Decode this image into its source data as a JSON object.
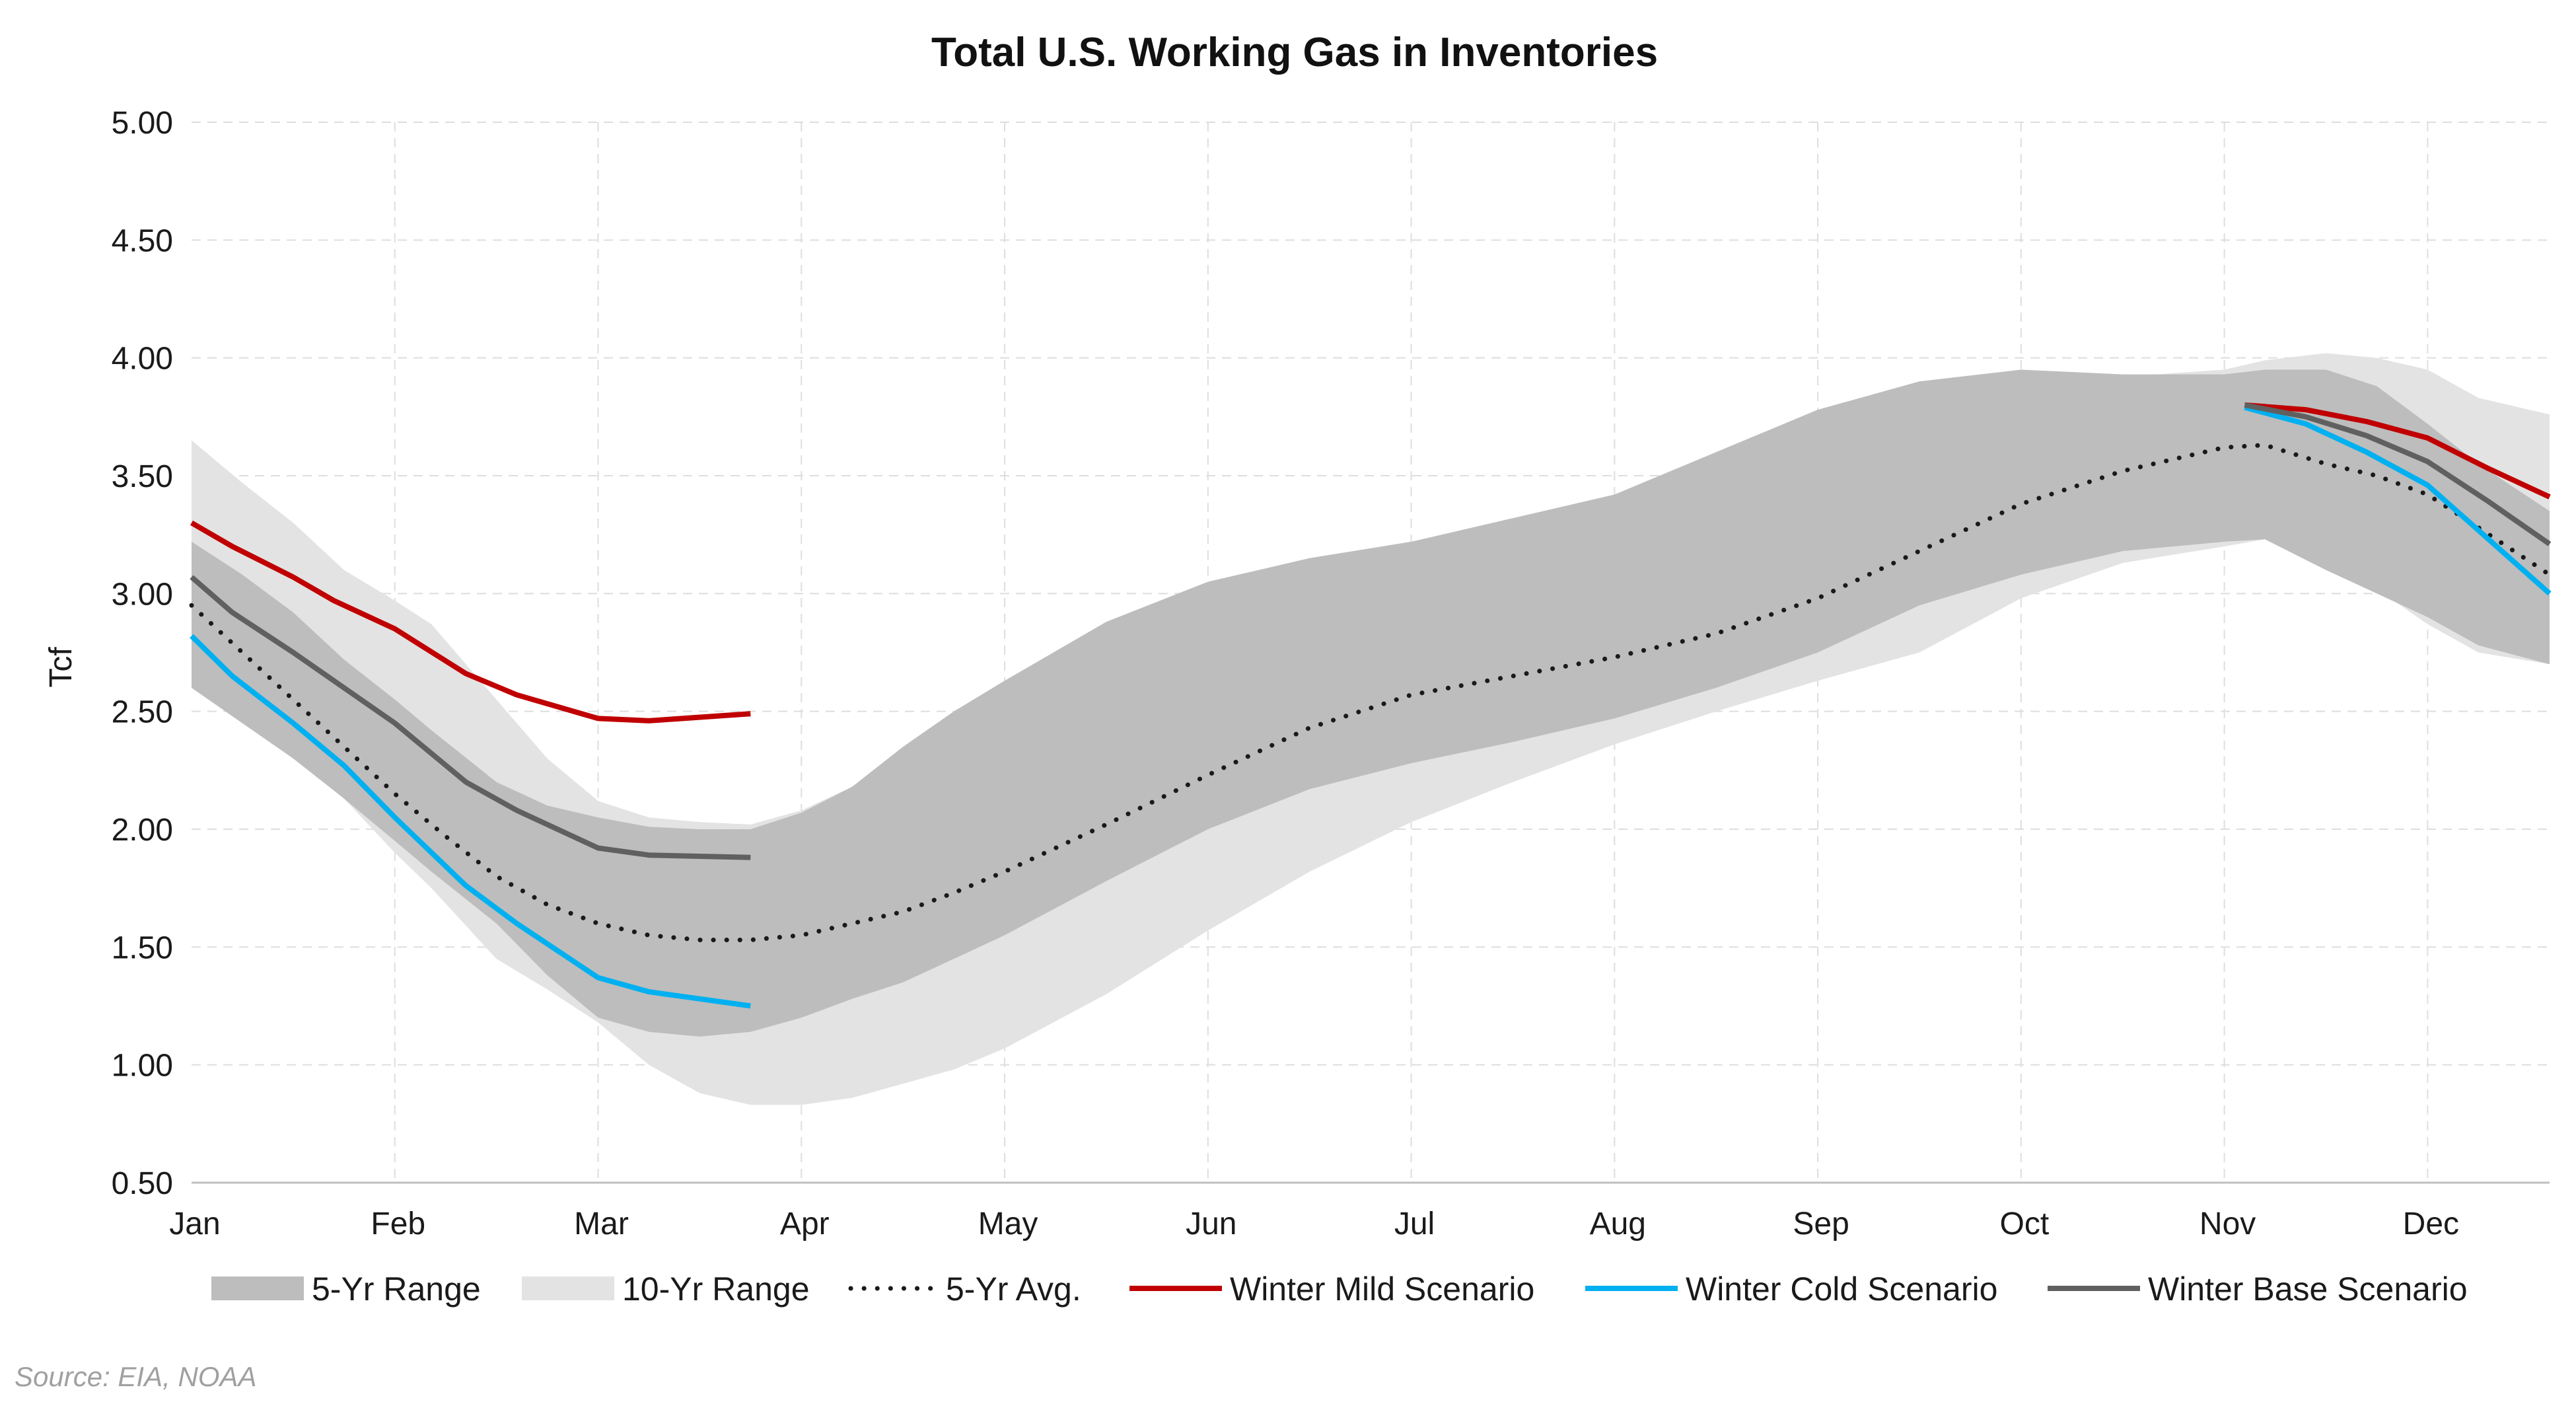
{
  "chart_data": {
    "type": "line",
    "title": "Total U.S. Working Gas in Inventories",
    "ylabel": "Tcf",
    "xlabel": "",
    "ylim": [
      0.5,
      5.0
    ],
    "yticks": [
      "5.00",
      "4.50",
      "4.00",
      "3.50",
      "3.00",
      "2.50",
      "2.00",
      "1.50",
      "1.00",
      "0.50"
    ],
    "xlim": [
      0,
      11.6
    ],
    "xticks": [
      "Jan",
      "Feb",
      "Mar",
      "Apr",
      "May",
      "Jun",
      "Jul",
      "Aug",
      "Sep",
      "Oct",
      "Nov",
      "Dec"
    ],
    "grid": true,
    "legend_position": "bottom",
    "source": "Source: EIA, NOAA",
    "colors": {
      "range5": "#bdbdbd",
      "range10": "#e3e3e3",
      "avg": "#1a1a1a",
      "mild": "#c00000",
      "cold": "#00b0f0",
      "base": "#606060",
      "grid": "#dedede"
    },
    "legend": [
      {
        "label": "5-Yr Range",
        "kind": "area",
        "key": "range5"
      },
      {
        "label": "10-Yr Range",
        "kind": "area",
        "key": "range10"
      },
      {
        "label": "5-Yr Avg.",
        "kind": "dotted",
        "key": "avg"
      },
      {
        "label": "Winter Mild Scenario",
        "kind": "line",
        "key": "mild"
      },
      {
        "label": "Winter Cold Scenario",
        "kind": "line",
        "key": "cold"
      },
      {
        "label": "Winter Base Scenario",
        "kind": "line",
        "key": "base"
      }
    ],
    "band_x": [
      0,
      0.25,
      0.5,
      0.75,
      1.0,
      1.18,
      1.5,
      1.75,
      2.0,
      2.25,
      2.5,
      2.75,
      3.0,
      3.25,
      3.5,
      3.75,
      4.0,
      4.5,
      5.0,
      5.5,
      6.0,
      6.5,
      7.0,
      7.5,
      8.0,
      8.5,
      9.0,
      9.5,
      10.0,
      10.2,
      10.5,
      10.75,
      11.0,
      11.25,
      11.6
    ],
    "range10_high": [
      3.65,
      3.47,
      3.3,
      3.1,
      2.97,
      2.87,
      2.55,
      2.3,
      2.12,
      2.05,
      2.03,
      2.02,
      2.08,
      2.18,
      2.32,
      2.47,
      2.62,
      2.83,
      3.03,
      3.15,
      3.22,
      3.27,
      3.32,
      3.45,
      3.58,
      3.73,
      3.85,
      3.92,
      3.95,
      3.99,
      4.02,
      4.0,
      3.95,
      3.83,
      3.76
    ],
    "range10_low": [
      2.6,
      2.45,
      2.3,
      2.13,
      1.9,
      1.75,
      1.45,
      1.32,
      1.18,
      1.0,
      0.88,
      0.83,
      0.83,
      0.86,
      0.92,
      0.98,
      1.07,
      1.3,
      1.57,
      1.82,
      2.03,
      2.2,
      2.36,
      2.5,
      2.63,
      2.75,
      2.98,
      3.13,
      3.2,
      3.23,
      3.1,
      3.02,
      2.87,
      2.75,
      2.7
    ],
    "range5_high": [
      3.22,
      3.08,
      2.92,
      2.72,
      2.55,
      2.42,
      2.2,
      2.1,
      2.05,
      2.01,
      2.0,
      2.0,
      2.07,
      2.18,
      2.35,
      2.5,
      2.63,
      2.88,
      3.05,
      3.15,
      3.22,
      3.32,
      3.42,
      3.6,
      3.78,
      3.9,
      3.95,
      3.93,
      3.93,
      3.95,
      3.95,
      3.88,
      3.72,
      3.55,
      3.35
    ],
    "range5_low": [
      2.6,
      2.45,
      2.3,
      2.13,
      1.95,
      1.82,
      1.6,
      1.38,
      1.2,
      1.14,
      1.12,
      1.14,
      1.2,
      1.28,
      1.35,
      1.45,
      1.55,
      1.78,
      2.0,
      2.17,
      2.28,
      2.37,
      2.47,
      2.6,
      2.75,
      2.95,
      3.08,
      3.18,
      3.22,
      3.23,
      3.1,
      3.0,
      2.9,
      2.78,
      2.7
    ],
    "avg_x": [
      0,
      0.25,
      0.5,
      0.75,
      1.0,
      1.25,
      1.5,
      1.75,
      2.0,
      2.25,
      2.5,
      2.75,
      3.0,
      3.25,
      3.5,
      3.75,
      4.0,
      4.5,
      5.0,
      5.5,
      6.0,
      6.5,
      7.0,
      7.5,
      8.0,
      8.5,
      9.0,
      9.5,
      10.0,
      10.2,
      10.5,
      10.75,
      11.0,
      11.25,
      11.6
    ],
    "avg_y": [
      2.95,
      2.75,
      2.55,
      2.35,
      2.15,
      1.97,
      1.8,
      1.68,
      1.6,
      1.55,
      1.53,
      1.53,
      1.55,
      1.6,
      1.65,
      1.73,
      1.82,
      2.02,
      2.23,
      2.43,
      2.57,
      2.65,
      2.73,
      2.83,
      2.98,
      3.18,
      3.38,
      3.52,
      3.62,
      3.63,
      3.55,
      3.5,
      3.42,
      3.28,
      3.08
    ],
    "series": [
      {
        "name": "Winter Mild Scenario",
        "key": "mild",
        "x": [
          0,
          0.2,
          0.5,
          0.7,
          1.0,
          1.35,
          1.6,
          2.0,
          2.25,
          2.75
        ],
        "y": [
          3.3,
          3.2,
          3.07,
          2.97,
          2.85,
          2.66,
          2.57,
          2.47,
          2.46,
          2.49
        ]
      },
      {
        "name": "Winter Cold Scenario",
        "key": "cold",
        "x": [
          0,
          0.2,
          0.5,
          0.75,
          1.0,
          1.35,
          1.6,
          2.0,
          2.25,
          2.75
        ],
        "y": [
          2.82,
          2.65,
          2.45,
          2.27,
          2.05,
          1.76,
          1.6,
          1.37,
          1.31,
          1.25
        ]
      },
      {
        "name": "Winter Base Scenario",
        "key": "base",
        "x": [
          0,
          0.2,
          0.5,
          0.75,
          1.0,
          1.35,
          1.6,
          2.0,
          2.25,
          2.75
        ],
        "y": [
          3.07,
          2.92,
          2.75,
          2.6,
          2.45,
          2.2,
          2.08,
          1.92,
          1.89,
          1.88
        ]
      },
      {
        "name": "Winter Mild Scenario",
        "key": "mild",
        "x": [
          10.1,
          10.4,
          10.7,
          11.0,
          11.3,
          11.6
        ],
        "y": [
          3.8,
          3.78,
          3.73,
          3.66,
          3.53,
          3.41
        ]
      },
      {
        "name": "Winter Cold Scenario",
        "key": "cold",
        "x": [
          10.1,
          10.4,
          10.7,
          11.0,
          11.3,
          11.6
        ],
        "y": [
          3.79,
          3.72,
          3.6,
          3.46,
          3.23,
          3.0
        ]
      },
      {
        "name": "Winter Base Scenario",
        "key": "base",
        "x": [
          10.1,
          10.4,
          10.7,
          11.0,
          11.3,
          11.6
        ],
        "y": [
          3.8,
          3.75,
          3.67,
          3.56,
          3.39,
          3.21
        ]
      }
    ]
  }
}
